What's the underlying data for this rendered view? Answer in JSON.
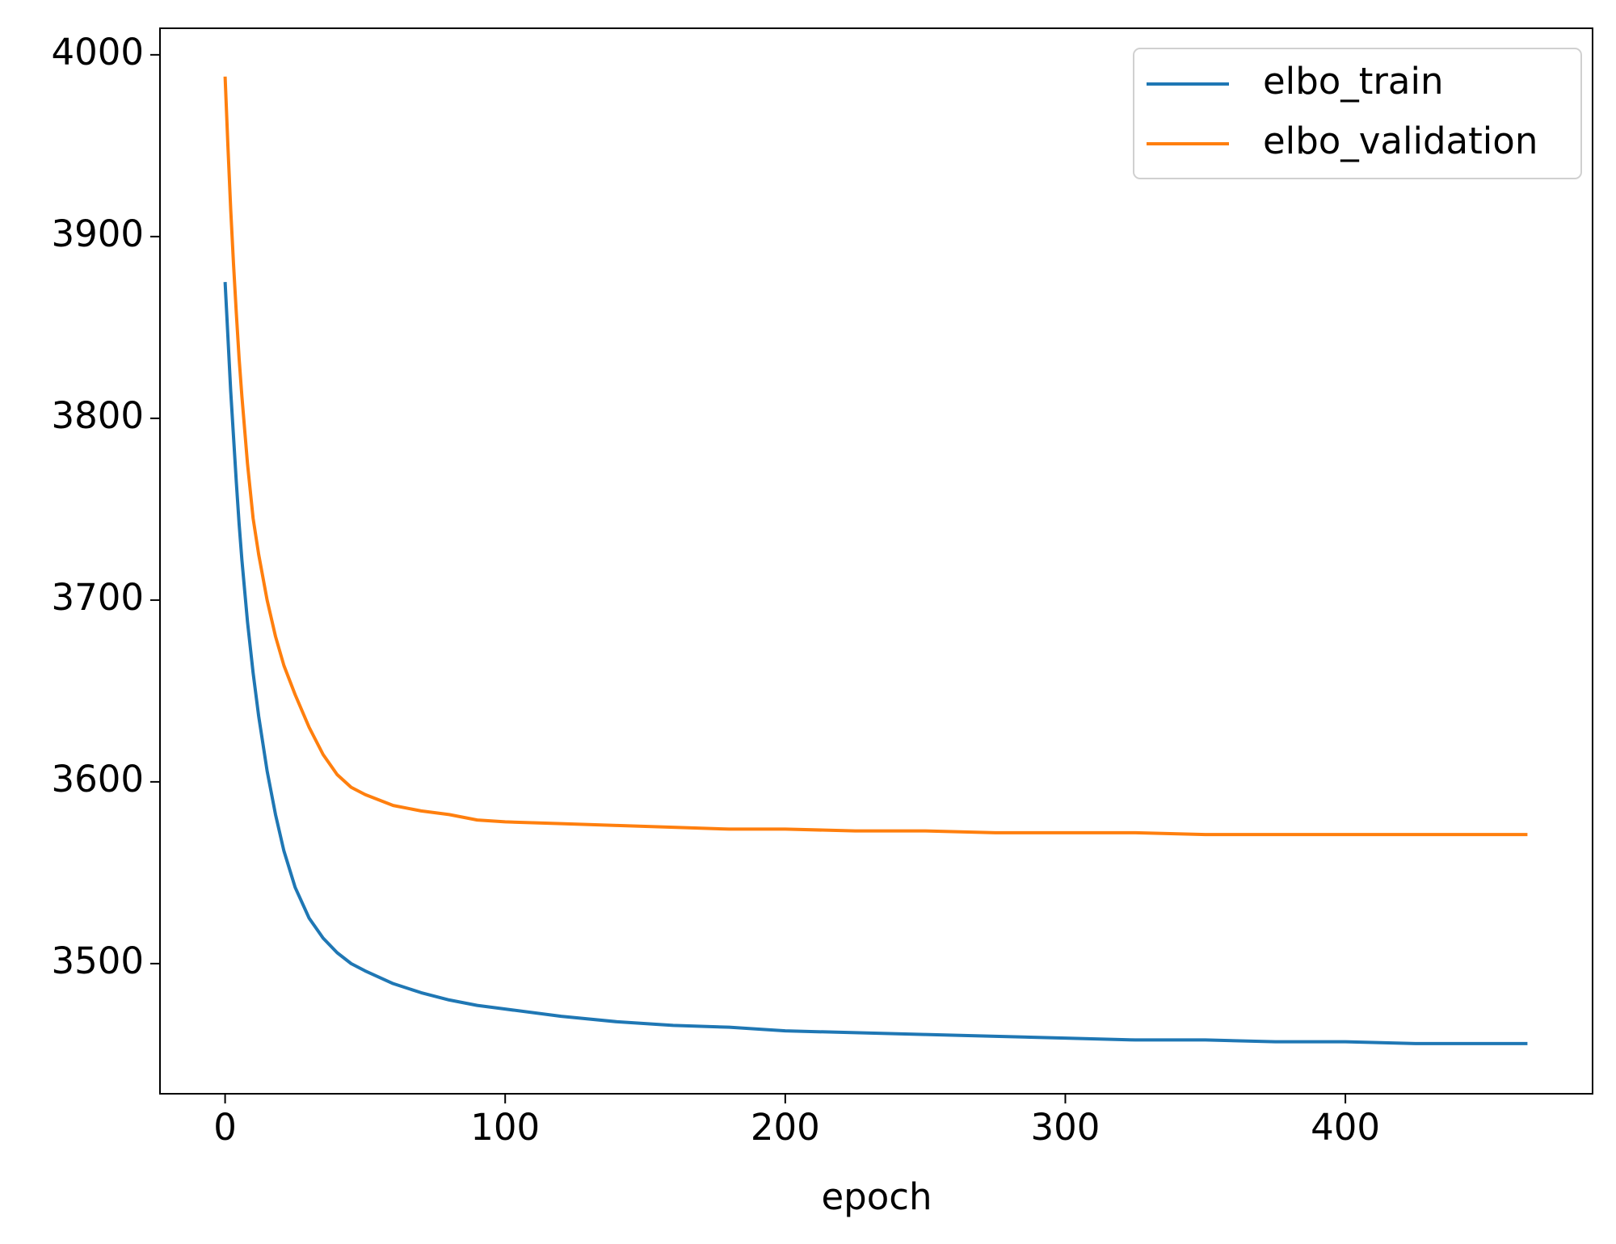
{
  "chart_data": {
    "type": "line",
    "x_label": "epoch",
    "x": [
      0,
      1,
      2,
      3,
      4,
      5,
      6,
      8,
      10,
      12,
      15,
      18,
      21,
      25,
      30,
      35,
      40,
      45,
      50,
      60,
      70,
      80,
      90,
      100,
      120,
      140,
      160,
      180,
      200,
      225,
      250,
      275,
      300,
      325,
      350,
      375,
      400,
      425,
      450,
      465
    ],
    "series": [
      {
        "name": "elbo_train",
        "color": "#1f77b4",
        "values": [
          3875,
          3845,
          3815,
          3790,
          3765,
          3742,
          3722,
          3688,
          3660,
          3636,
          3606,
          3582,
          3562,
          3542,
          3525,
          3514,
          3506,
          3500,
          3496,
          3489,
          3484,
          3480,
          3477,
          3475,
          3471,
          3468,
          3466,
          3465,
          3463,
          3462,
          3461,
          3460,
          3459,
          3458,
          3458,
          3457,
          3457,
          3456,
          3456,
          3456
        ]
      },
      {
        "name": "elbo_validation",
        "color": "#ff7f0e",
        "values": [
          3988,
          3950,
          3915,
          3885,
          3858,
          3833,
          3812,
          3775,
          3745,
          3725,
          3700,
          3680,
          3664,
          3648,
          3630,
          3615,
          3604,
          3597,
          3593,
          3587,
          3584,
          3582,
          3579,
          3578,
          3577,
          3576,
          3575,
          3574,
          3574,
          3573,
          3573,
          3572,
          3572,
          3572,
          3571,
          3571,
          3571,
          3571,
          3571,
          3571
        ]
      }
    ],
    "xlim": [
      -23.25,
      488.25
    ],
    "xticks": [
      0,
      100,
      200,
      300,
      400
    ],
    "ylim": [
      3428.4,
      4014.6
    ],
    "yticks": [
      3500,
      3600,
      3700,
      3800,
      3900,
      4000
    ],
    "legend": "upper right"
  }
}
